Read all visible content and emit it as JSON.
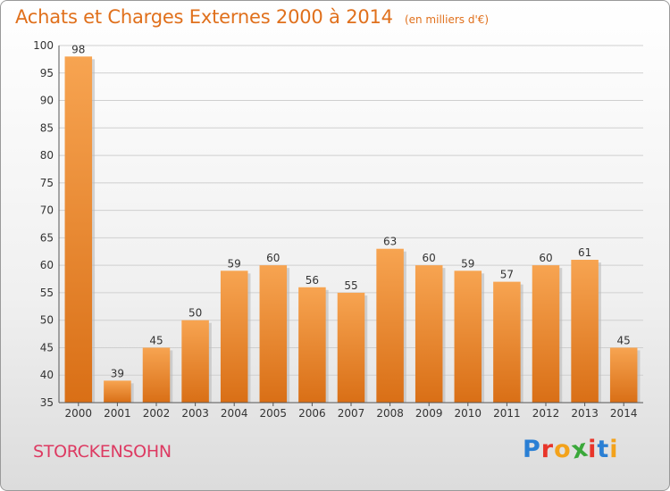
{
  "header": {
    "title": "Achats et Charges Externes 2000 à 2014",
    "subtitle": "(en milliers d'€)"
  },
  "footer": {
    "commune": "STORCKENSOHN",
    "logo": {
      "text": "Proxiti",
      "letters": [
        {
          "char": "P",
          "color": "#2a7fd4"
        },
        {
          "char": "r",
          "color": "#e8352a"
        },
        {
          "char": "o",
          "color": "#f3a21b"
        },
        {
          "char": "x",
          "color": "#3aa83a"
        },
        {
          "char": "i",
          "color": "#e8352a"
        },
        {
          "char": "t",
          "color": "#2a7fd4"
        },
        {
          "char": "i",
          "color": "#f3a21b"
        }
      ]
    }
  },
  "colors": {
    "title": "#e0701c",
    "commune": "#dd3a62",
    "bar_top": "#f7a451",
    "bar_bottom": "#d96f16",
    "grid": "#cfcfcf"
  },
  "chart_data": {
    "type": "bar",
    "title": "Achats et Charges Externes 2000 à 2014",
    "subtitle": "(en milliers d'€)",
    "xlabel": "",
    "ylabel": "",
    "categories": [
      "2000",
      "2001",
      "2002",
      "2003",
      "2004",
      "2005",
      "2006",
      "2007",
      "2008",
      "2009",
      "2010",
      "2011",
      "2012",
      "2013",
      "2014"
    ],
    "values": [
      98,
      39,
      45,
      50,
      59,
      60,
      56,
      55,
      63,
      60,
      59,
      57,
      60,
      61,
      45
    ],
    "ylim": [
      35,
      100
    ],
    "yticks": [
      35,
      40,
      45,
      50,
      55,
      60,
      65,
      70,
      75,
      80,
      85,
      90,
      95,
      100
    ],
    "grid": true,
    "legend": "none"
  }
}
